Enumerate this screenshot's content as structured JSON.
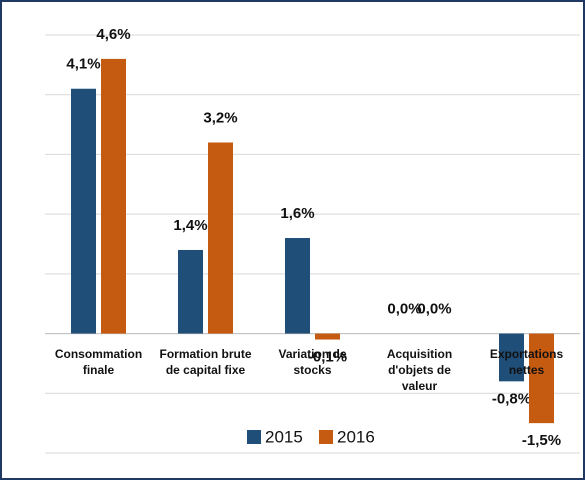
{
  "chart_data": {
    "type": "bar",
    "categories": [
      "Consommation finale",
      "Formation brute de capital fixe",
      "Variation de stocks",
      "Acquisition d'objets de valeur",
      "Exportations nettes"
    ],
    "series": [
      {
        "name": "2015",
        "color": "#1f4e79",
        "values": [
          4.1,
          1.4,
          1.6,
          0.0,
          -0.8
        ],
        "value_labels": [
          "4,1%",
          "1,4%",
          "1,6%",
          "0,0%",
          "-0,8%"
        ]
      },
      {
        "name": "2016",
        "color": "#c55a11",
        "values": [
          4.6,
          3.2,
          -0.1,
          0.0,
          -1.5
        ],
        "value_labels": [
          "4,6%",
          "3,2%",
          "-0,1%",
          "0,0%",
          "-1,5%"
        ]
      }
    ],
    "ylim": [
      -2,
      5
    ],
    "yticks": [
      -2,
      -1,
      0,
      1,
      2,
      3,
      4,
      5
    ],
    "grid": true,
    "legend": "bottom"
  }
}
